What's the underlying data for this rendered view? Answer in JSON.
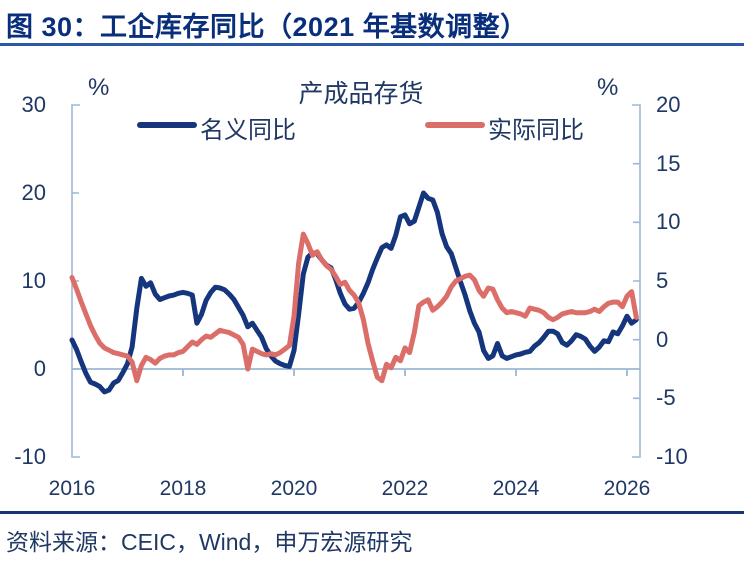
{
  "page": {
    "title": "图 30：工企库存同比（2021 年基数调整）",
    "source": "资料来源：CEIC，Wind，申万宏源研究"
  },
  "colors": {
    "title_navy": "#092e7c",
    "text_navy": "#1f3864",
    "axis_steel_blue": "#9db8d4",
    "title_underline_blue": "#2b57a7",
    "source_divider_navy": "#17356e",
    "nominal_line_blue": "#15357d",
    "real_line_red": "#dc6e6a"
  },
  "chart_data": {
    "type": "line",
    "title": "产成品存货",
    "legend_position": "top",
    "grid": false,
    "left_axis": {
      "unit": "%",
      "min": -10,
      "max": 30,
      "ticks": [
        30,
        20,
        10,
        0,
        -10
      ]
    },
    "right_axis": {
      "unit": "%",
      "min": -10,
      "max": 20,
      "ticks": [
        20,
        15,
        10,
        5,
        0,
        -5,
        -10
      ]
    },
    "x_axis": {
      "start_year": 2016,
      "step_months": 1,
      "ticks": [
        2016,
        2018,
        2020,
        2022,
        2024,
        2026
      ]
    },
    "series": [
      {
        "name": "名义同比",
        "axis": "left",
        "color": "#15357d",
        "values": [
          3.3,
          2.2,
          0.8,
          -0.5,
          -1.5,
          -1.7,
          -2.0,
          -2.6,
          -2.4,
          -1.6,
          -1.3,
          -0.4,
          0.6,
          2.5,
          6.9,
          10.3,
          9.4,
          9.8,
          8.5,
          7.9,
          8.1,
          8.3,
          8.4,
          8.6,
          8.7,
          8.6,
          8.4,
          5.2,
          6.2,
          7.8,
          8.7,
          9.3,
          9.2,
          9.0,
          8.5,
          7.9,
          7.0,
          6.1,
          4.8,
          5.2,
          4.4,
          3.6,
          2.3,
          1.5,
          0.9,
          0.6,
          0.4,
          0.3,
          2.1,
          6.2,
          10.8,
          12.7,
          13.2,
          13.1,
          12.4,
          11.8,
          11.5,
          10.2,
          8.6,
          7.4,
          6.8,
          6.9,
          7.6,
          8.6,
          9.8,
          11.3,
          12.6,
          13.8,
          14.1,
          13.7,
          15.2,
          17.3,
          17.5,
          16.5,
          16.8,
          18.4,
          20.0,
          19.4,
          19.2,
          17.8,
          15.4,
          13.9,
          13.1,
          11.5,
          9.9,
          8.4,
          6.6,
          5.2,
          4.2,
          2.1,
          1.2,
          1.5,
          2.9,
          1.5,
          1.2,
          1.4,
          1.6,
          1.7,
          1.9,
          2.0,
          2.6,
          3.0,
          3.6,
          4.3,
          4.3,
          4.0,
          3.0,
          2.7,
          3.2,
          3.9,
          3.7,
          3.4,
          2.6,
          2.0,
          2.5,
          3.2,
          3.1,
          4.2,
          4.0,
          4.9,
          6.0,
          5.2,
          5.6
        ]
      },
      {
        "name": "实际同比",
        "axis": "right",
        "color": "#dc6e6a",
        "values": [
          5.3,
          4.3,
          3.2,
          2.2,
          1.2,
          0.4,
          -0.3,
          -0.7,
          -0.9,
          -1.1,
          -1.2,
          -1.3,
          -1.4,
          -1.9,
          -3.5,
          -2.2,
          -1.5,
          -1.7,
          -2.0,
          -1.6,
          -1.4,
          -1.3,
          -1.3,
          -1.1,
          -1.0,
          -0.6,
          -0.2,
          -0.4,
          0.0,
          0.3,
          0.2,
          0.5,
          0.8,
          0.7,
          0.6,
          0.4,
          0.2,
          -0.4,
          -2.5,
          -0.8,
          -1.0,
          -1.2,
          -1.3,
          -1.2,
          -1.3,
          -1.1,
          -0.8,
          -0.5,
          2.0,
          6.5,
          9.0,
          8.2,
          7.2,
          7.5,
          6.8,
          6.3,
          6.0,
          5.4,
          4.7,
          4.9,
          4.2,
          3.8,
          3.1,
          1.7,
          -0.3,
          -1.8,
          -3.2,
          -3.5,
          -2.1,
          -2.4,
          -1.5,
          -1.8,
          -0.7,
          -1.1,
          0.6,
          2.9,
          3.2,
          3.4,
          2.5,
          2.8,
          3.2,
          3.7,
          4.5,
          5.0,
          5.2,
          5.4,
          5.5,
          5.1,
          4.2,
          3.7,
          4.4,
          4.3,
          3.4,
          2.7,
          2.3,
          2.4,
          2.3,
          2.2,
          2.0,
          2.7,
          2.6,
          2.5,
          2.3,
          1.9,
          1.7,
          1.9,
          2.2,
          2.3,
          2.4,
          2.3,
          2.3,
          2.3,
          2.4,
          2.6,
          2.4,
          2.8,
          3.1,
          3.2,
          3.2,
          2.8,
          3.7,
          4.1,
          1.9
        ]
      }
    ]
  }
}
